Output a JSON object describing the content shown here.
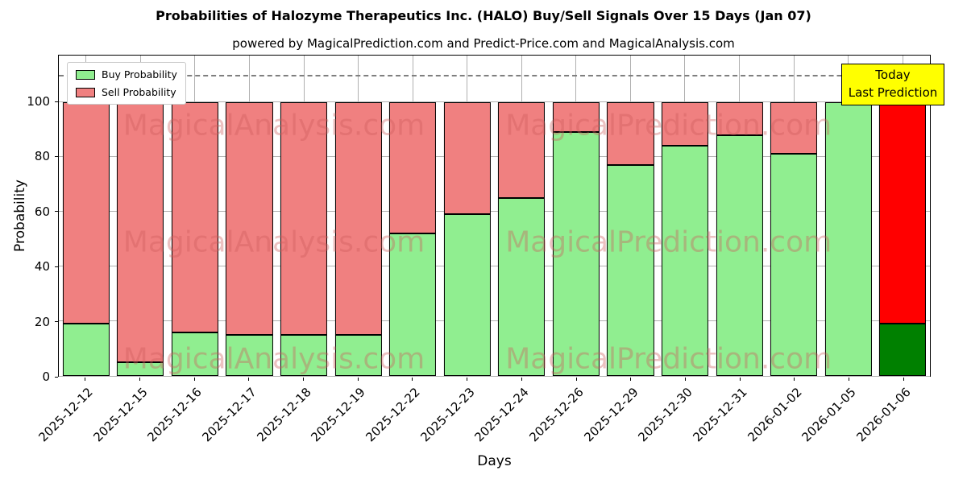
{
  "header": {
    "title": "Probabilities of Halozyme Therapeutics Inc. (HALO) Buy/Sell Signals Over 15 Days (Jan 07)",
    "subtitle": "powered by MagicalPrediction.com and Predict-Price.com and MagicalAnalysis.com"
  },
  "legend": {
    "buy_label": "Buy Probability",
    "sell_label": "Sell Probability"
  },
  "annotation": {
    "line1": "Today",
    "line2": "Last Prediction"
  },
  "axes": {
    "xlabel": "Days",
    "ylabel": "Probability",
    "yticks": [
      0,
      20,
      40,
      60,
      80,
      100
    ]
  },
  "watermarks": [
    "MagicalAnalysis.com",
    "MagicalPrediction.com"
  ],
  "colors": {
    "buy": "#90EE90",
    "sell": "#F08080",
    "today_buy": "#008000",
    "today_sell": "#FF0000",
    "annotation_bg": "#FFFF00",
    "grid": "#B0B0B0",
    "watermark": "rgba(205,92,92,0.38)"
  },
  "chart_data": {
    "type": "bar",
    "stacked": true,
    "title": "Probabilities of Halozyme Therapeutics Inc. (HALO) Buy/Sell Signals Over 15 Days (Jan 07)",
    "xlabel": "Days",
    "ylabel": "Probability",
    "ylim": [
      0,
      117
    ],
    "dashed_line_y": 110,
    "grid": true,
    "legend_position": "upper left",
    "categories": [
      "2025-12-12",
      "2025-12-15",
      "2025-12-16",
      "2025-12-17",
      "2025-12-18",
      "2025-12-19",
      "2025-12-22",
      "2025-12-23",
      "2025-12-24",
      "2025-12-26",
      "2025-12-29",
      "2025-12-30",
      "2025-12-31",
      "2026-01-02",
      "2026-01-05",
      "2026-01-06"
    ],
    "series": [
      {
        "name": "Buy Probability",
        "color": "#90EE90",
        "values": [
          19,
          5,
          16,
          15,
          15,
          15,
          52,
          59,
          65,
          89,
          77,
          84,
          88,
          81,
          100,
          19
        ]
      },
      {
        "name": "Sell Probability",
        "color": "#F08080",
        "values": [
          81,
          95,
          84,
          85,
          85,
          85,
          48,
          41,
          35,
          11,
          23,
          16,
          12,
          19,
          0,
          81
        ]
      }
    ],
    "last_bar_colors": {
      "buy": "#008000",
      "sell": "#FF0000"
    },
    "last_bar_annotation": "Today Last Prediction"
  }
}
